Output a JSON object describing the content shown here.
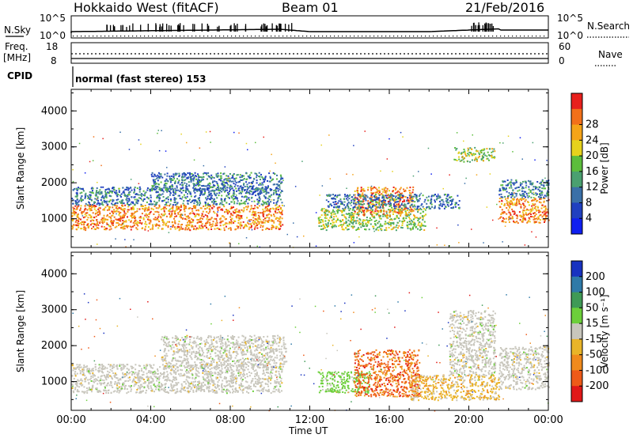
{
  "header": {
    "title": "Hokkaido West (fitACF)",
    "beam": "Beam 01",
    "date": "21/Feb/2016"
  },
  "top_panels": {
    "nsky_label": "N.Sky",
    "nsky_ticks": [
      "10^5",
      "10^0"
    ],
    "nsearch_label": "N.Search",
    "nsearch_ticks": [
      "10^5",
      "10^0"
    ],
    "freq_label": "Freq.",
    "freq_unit": "[MHz]",
    "freq_ticks": [
      "18",
      "8"
    ],
    "nave_label": "Nave",
    "nave_ticks": [
      "60",
      "0"
    ],
    "cpid_label": "CPID",
    "cpid_text": "normal (fast stereo) 153"
  },
  "chart_data": [
    {
      "type": "heatmap",
      "panel": "power",
      "ylabel": "Slant Range [km]",
      "yticks": [
        "1000",
        "2000",
        "3000",
        "4000"
      ],
      "ylim": [
        200,
        4600
      ],
      "xticks": [
        "00:00",
        "04:00",
        "08:00",
        "12:00",
        "16:00",
        "20:00",
        "00:00"
      ],
      "xlim_hours": [
        0,
        24
      ],
      "colorbar": {
        "label": "Power [dB]",
        "ticks": [
          "4",
          "8",
          "12",
          "16",
          "20",
          "24",
          "28"
        ],
        "colors": [
          "#0f1ff0",
          "#2040c0",
          "#3a70a8",
          "#4aa070",
          "#5cbd3c",
          "#e6d21c",
          "#f5a418",
          "#f2701a",
          "#e8201c"
        ]
      },
      "regions": [
        {
          "t0": 0.0,
          "t1": 10.6,
          "rLow": 700,
          "rHigh": 1400,
          "level": "high"
        },
        {
          "t0": 0.0,
          "t1": 10.6,
          "rLow": 1400,
          "rHigh": 1900,
          "level": "low"
        },
        {
          "t0": 4.0,
          "t1": 10.6,
          "rLow": 1800,
          "rHigh": 2300,
          "level": "low"
        },
        {
          "t0": 12.4,
          "t1": 17.8,
          "rLow": 700,
          "rHigh": 1300,
          "level": "mid"
        },
        {
          "t0": 14.2,
          "t1": 17.2,
          "rLow": 1100,
          "rHigh": 1900,
          "level": "high"
        },
        {
          "t0": 12.8,
          "t1": 19.5,
          "rLow": 1300,
          "rHigh": 1700,
          "level": "low"
        },
        {
          "t0": 19.2,
          "t1": 21.3,
          "rLow": 2600,
          "rHigh": 3000,
          "level": "mid"
        },
        {
          "t0": 21.5,
          "t1": 24.0,
          "rLow": 900,
          "rHigh": 1600,
          "level": "high"
        },
        {
          "t0": 21.5,
          "t1": 24.0,
          "rLow": 1600,
          "rHigh": 2100,
          "level": "low"
        }
      ]
    },
    {
      "type": "heatmap",
      "panel": "velocity",
      "ylabel": "Slant Range [km]",
      "yticks": [
        "1000",
        "2000",
        "3000",
        "4000"
      ],
      "ylim": [
        200,
        4600
      ],
      "xticks": [
        "00:00",
        "04:00",
        "08:00",
        "12:00",
        "16:00",
        "20:00",
        "00:00"
      ],
      "xlim_hours": [
        0,
        24
      ],
      "xlabel": "Time UT",
      "colorbar": {
        "label": "Velocity [m s⁻¹]",
        "ticks": [
          "200",
          "100",
          "50",
          "15",
          "-15",
          "-50",
          "-100",
          "-200"
        ],
        "colors": [
          "#1832c0",
          "#2f7aa8",
          "#3f9a56",
          "#6ccf3a",
          "#c8c6bc",
          "#e9b428",
          "#f08a1c",
          "#ee5a18",
          "#e01818"
        ]
      },
      "regions": [
        {
          "t0": 0.0,
          "t1": 10.6,
          "rLow": 700,
          "rHigh": 1500,
          "level": "grey"
        },
        {
          "t0": 4.5,
          "t1": 10.8,
          "rLow": 1400,
          "rHigh": 2300,
          "level": "grey"
        },
        {
          "t0": 12.4,
          "t1": 15.0,
          "rLow": 700,
          "rHigh": 1300,
          "level": "green"
        },
        {
          "t0": 14.2,
          "t1": 17.5,
          "rLow": 600,
          "rHigh": 1900,
          "level": "red"
        },
        {
          "t0": 17.0,
          "t1": 21.5,
          "rLow": 500,
          "rHigh": 1200,
          "level": "orange"
        },
        {
          "t0": 19.0,
          "t1": 21.3,
          "rLow": 1200,
          "rHigh": 3000,
          "level": "grey"
        },
        {
          "t0": 21.5,
          "t1": 24.0,
          "rLow": 800,
          "rHigh": 2000,
          "level": "grey"
        }
      ]
    }
  ]
}
